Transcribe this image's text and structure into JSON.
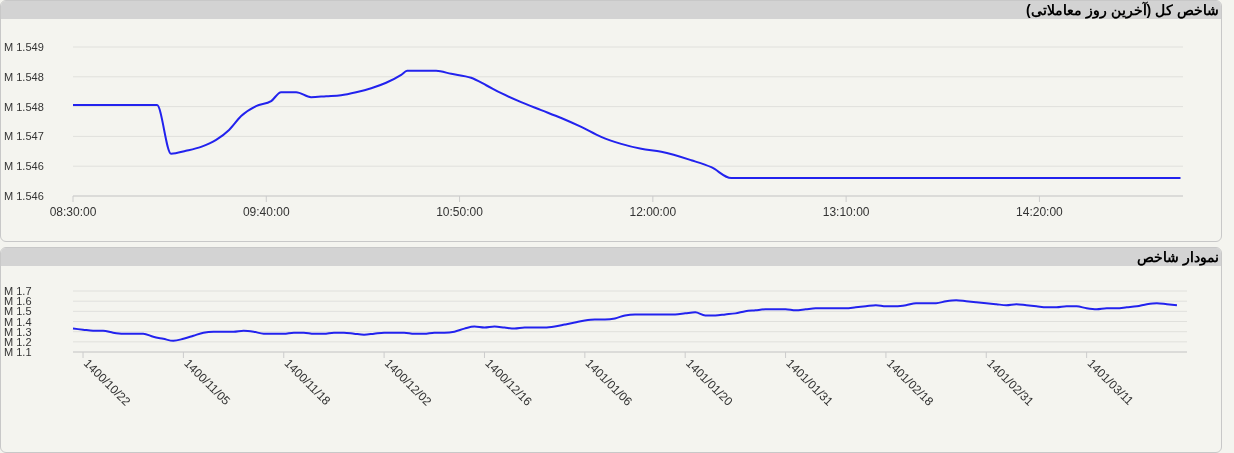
{
  "chart_data": [
    {
      "type": "line",
      "title": "شاخص کل (آخرین روز معاملاتی)",
      "x": [
        8.5,
        9.007,
        9.092,
        9.182,
        9.273,
        9.364,
        9.442,
        9.515,
        9.605,
        9.696,
        9.756,
        9.847,
        9.937,
        10.028,
        10.118,
        10.209,
        10.3,
        10.39,
        10.481,
        10.517,
        10.692,
        10.783,
        10.903,
        10.994,
        11.085,
        11.205,
        11.326,
        11.447,
        11.568,
        11.688,
        11.809,
        11.93,
        12.051,
        12.232,
        12.353,
        12.473,
        15.185
      ],
      "series": [
        {
          "color": "#2222ee",
          "values": [
            1.54763,
            1.54763,
            1.54665,
            1.54671,
            1.54679,
            1.54693,
            1.54713,
            1.54741,
            1.54761,
            1.54771,
            1.54789,
            1.54789,
            1.54779,
            1.54781,
            1.54783,
            1.54789,
            1.54797,
            1.54808,
            1.54824,
            1.54832,
            1.54832,
            1.54826,
            1.54818,
            1.54803,
            1.54787,
            1.54769,
            1.54753,
            1.54737,
            1.54719,
            1.54699,
            1.54685,
            1.54675,
            1.54669,
            1.54652,
            1.54638,
            1.54616,
            1.54616
          ]
        }
      ],
      "xlim": [
        8.5,
        15.2
      ],
      "xticks": [
        {
          "value": 8.5,
          "label": "08:30:00"
        },
        {
          "value": 9.6667,
          "label": "09:40:00"
        },
        {
          "value": 10.8333,
          "label": "10:50:00"
        },
        {
          "value": 12,
          "label": "12:00:00"
        },
        {
          "value": 13.1667,
          "label": "13:10:00"
        },
        {
          "value": 14.3333,
          "label": "14:20:00"
        }
      ],
      "ylim": [
        1.5458,
        1.5488
      ],
      "yticks": [
        {
          "value": 1.5458,
          "label": "1.546 M"
        },
        {
          "value": 1.5464,
          "label": "1.546 M"
        },
        {
          "value": 1.547,
          "label": "1.547 M"
        },
        {
          "value": 1.5476,
          "label": "1.548 M"
        },
        {
          "value": 1.5482,
          "label": "1.548 M"
        },
        {
          "value": 1.5488,
          "label": "1.549 M"
        }
      ],
      "grid": "y"
    },
    {
      "type": "line",
      "title": "نمودار شاخص",
      "categories": [
        null,
        "1400/10/22",
        null,
        null,
        null,
        null,
        null,
        null,
        null,
        null,
        null,
        "1400/11/05",
        null,
        null,
        null,
        null,
        null,
        null,
        null,
        null,
        null,
        "1400/11/18",
        null,
        null,
        null,
        null,
        null,
        null,
        null,
        null,
        null,
        "1400/12/02",
        null,
        null,
        null,
        null,
        null,
        null,
        null,
        null,
        null,
        "1400/12/16",
        null,
        null,
        null,
        null,
        null,
        null,
        null,
        null,
        null,
        "1401/01/06",
        null,
        null,
        null,
        null,
        null,
        null,
        null,
        null,
        null,
        "1401/01/20",
        null,
        null,
        null,
        null,
        null,
        null,
        null,
        null,
        null,
        "1401/01/31",
        null,
        null,
        null,
        null,
        null,
        null,
        null,
        null,
        null,
        "1401/02/18",
        null,
        null,
        null,
        null,
        null,
        null,
        null,
        null,
        null,
        "1401/02/31",
        null,
        null,
        null,
        null,
        null,
        null,
        null,
        null,
        null,
        "1401/03/11",
        null,
        null,
        null,
        null,
        null,
        null,
        null,
        null,
        null,
        null
      ],
      "series": [
        {
          "color": "#2222ee",
          "values": [
            1.33,
            1.32,
            1.31,
            1.31,
            1.29,
            1.28,
            1.28,
            1.28,
            1.25,
            1.23,
            1.21,
            1.23,
            1.26,
            1.29,
            1.3,
            1.3,
            1.3,
            1.31,
            1.3,
            1.28,
            1.28,
            1.28,
            1.29,
            1.29,
            1.28,
            1.28,
            1.29,
            1.29,
            1.28,
            1.27,
            1.28,
            1.29,
            1.29,
            1.29,
            1.28,
            1.28,
            1.29,
            1.29,
            1.3,
            1.33,
            1.35,
            1.34,
            1.35,
            1.34,
            1.33,
            1.34,
            1.34,
            1.34,
            1.35,
            1.37,
            1.39,
            1.41,
            1.42,
            1.42,
            1.43,
            1.46,
            1.47,
            1.47,
            1.47,
            1.47,
            1.47,
            1.48,
            1.49,
            1.46,
            1.46,
            1.47,
            1.48,
            1.5,
            1.51,
            1.52,
            1.52,
            1.52,
            1.51,
            1.52,
            1.53,
            1.53,
            1.53,
            1.53,
            1.54,
            1.55,
            1.56,
            1.55,
            1.55,
            1.56,
            1.58,
            1.58,
            1.58,
            1.6,
            1.61,
            1.6,
            1.59,
            1.58,
            1.57,
            1.56,
            1.57,
            1.56,
            1.55,
            1.54,
            1.54,
            1.55,
            1.55,
            1.53,
            1.52,
            1.53,
            1.53,
            1.54,
            1.55,
            1.57,
            1.58,
            1.57,
            1.56,
            null
          ]
        }
      ],
      "ylim": [
        1.1,
        1.7
      ],
      "yticks": [
        {
          "value": 1.1,
          "label": "1.1 M"
        },
        {
          "value": 1.2,
          "label": "1.2 M"
        },
        {
          "value": 1.3,
          "label": "1.3 M"
        },
        {
          "value": 1.4,
          "label": "1.4 M"
        },
        {
          "value": 1.5,
          "label": "1.5 M"
        },
        {
          "value": 1.6,
          "label": "1.6 M"
        },
        {
          "value": 1.7,
          "label": "1.7 M"
        }
      ],
      "grid": "y"
    }
  ]
}
